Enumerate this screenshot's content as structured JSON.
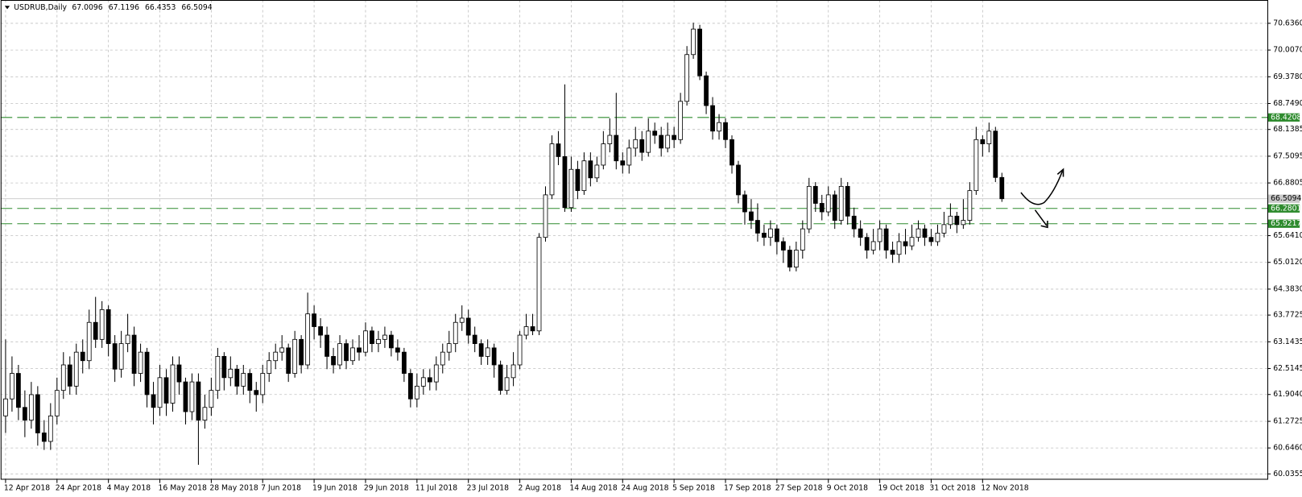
{
  "chart_data": {
    "type": "candlestick",
    "title": "USDRUB,Daily",
    "title_values": [
      67.0096,
      67.1196,
      66.4353,
      66.5094
    ],
    "open": [
      61.4,
      61.8,
      62.4,
      61.6,
      61.3,
      61.9,
      61.0,
      60.8,
      61.4,
      62.0,
      62.6,
      62.1,
      62.9,
      62.7,
      63.6,
      63.2,
      63.9,
      63.1,
      62.5,
      63.1,
      63.3,
      62.4,
      62.9,
      61.9,
      61.6,
      62.3,
      61.7,
      62.6,
      62.2,
      61.5,
      62.2,
      61.3,
      61.6,
      62.0,
      62.8,
      62.3,
      62.5,
      62.1,
      62.4,
      62.0,
      61.9,
      62.4,
      62.7,
      62.9,
      63.0,
      62.4,
      63.2,
      62.6,
      63.8,
      63.5,
      63.3,
      62.8,
      62.6,
      63.1,
      62.7,
      63.0,
      62.9,
      63.4,
      63.1,
      63.2,
      63.3,
      63.0,
      62.9,
      62.4,
      61.8,
      62.1,
      62.3,
      62.2,
      62.6,
      62.9,
      63.1,
      63.6,
      63.7,
      63.3,
      63.1,
      62.8,
      63.0,
      62.6,
      62.0,
      62.3,
      62.6,
      63.3,
      63.5,
      63.4,
      65.6,
      66.6,
      67.8,
      67.5,
      66.3,
      67.2,
      66.7,
      67.4,
      67.0,
      67.3,
      67.8,
      68.0,
      67.4,
      67.3,
      67.7,
      67.9,
      67.6,
      68.1,
      68.0,
      67.7,
      68.0,
      67.9,
      68.8,
      69.9,
      70.5,
      69.4,
      68.7,
      68.1,
      68.3,
      67.9,
      67.3,
      66.6,
      66.2,
      66.0,
      65.7,
      65.6,
      65.8,
      65.5,
      65.3,
      64.9,
      65.3,
      65.8,
      66.8,
      66.4,
      66.2,
      66.6,
      66.0,
      66.8,
      66.1,
      65.8,
      65.6,
      65.3,
      65.5,
      65.8,
      65.3,
      65.2,
      65.5,
      65.4,
      65.6,
      65.8,
      65.6,
      65.5,
      65.7,
      65.9,
      66.1,
      65.9,
      66.0,
      66.7,
      67.9,
      67.8,
      68.1,
      67.0096
    ],
    "high": [
      63.2,
      62.8,
      62.6,
      62.0,
      62.2,
      62.1,
      61.3,
      61.7,
      62.3,
      62.9,
      62.8,
      63.1,
      63.2,
      63.9,
      64.2,
      64.1,
      64.0,
      63.3,
      63.4,
      63.8,
      63.5,
      63.1,
      63.0,
      62.2,
      62.6,
      62.5,
      62.8,
      62.8,
      62.3,
      62.4,
      62.4,
      61.9,
      62.3,
      63.0,
      62.9,
      62.8,
      62.6,
      62.6,
      62.5,
      62.2,
      62.6,
      62.9,
      63.1,
      63.3,
      63.1,
      63.4,
      63.3,
      64.3,
      64.0,
      63.7,
      63.5,
      63.0,
      63.3,
      63.2,
      63.2,
      63.3,
      63.6,
      63.5,
      63.4,
      63.5,
      63.4,
      63.2,
      63.0,
      62.5,
      62.4,
      62.5,
      62.5,
      62.8,
      63.1,
      63.4,
      63.8,
      64.0,
      63.9,
      63.5,
      63.2,
      63.2,
      63.1,
      62.7,
      62.6,
      62.9,
      63.4,
      63.8,
      63.8,
      65.7,
      66.8,
      68.0,
      68.1,
      69.2,
      67.5,
      67.4,
      67.6,
      67.6,
      67.5,
      68.1,
      68.4,
      69.0,
      67.6,
      67.9,
      68.2,
      68.1,
      68.4,
      68.3,
      68.2,
      68.3,
      68.2,
      69.0,
      70.1,
      70.65,
      70.6,
      69.5,
      68.9,
      68.5,
      68.4,
      68.0,
      67.4,
      66.7,
      66.5,
      66.4,
      65.9,
      66.0,
      65.9,
      65.6,
      65.4,
      65.5,
      66.0,
      67.0,
      66.9,
      66.6,
      66.8,
      66.7,
      67.0,
      66.9,
      66.3,
      66.0,
      65.7,
      65.8,
      66.0,
      65.9,
      65.5,
      65.7,
      65.8,
      65.9,
      66.0,
      65.9,
      65.8,
      65.9,
      66.2,
      66.4,
      66.2,
      66.5,
      66.9,
      68.2,
      68.0,
      68.3,
      68.2,
      67.1196
    ],
    "low": [
      61.0,
      61.5,
      61.3,
      60.9,
      61.1,
      60.7,
      60.6,
      60.6,
      61.2,
      61.8,
      61.9,
      61.9,
      62.4,
      62.5,
      63.0,
      63.0,
      62.8,
      62.2,
      62.3,
      62.9,
      62.1,
      62.2,
      61.6,
      61.2,
      61.4,
      61.4,
      61.5,
      61.9,
      61.2,
      61.3,
      60.25,
      61.1,
      61.4,
      61.8,
      62.0,
      62.1,
      61.9,
      61.9,
      61.7,
      61.5,
      61.7,
      62.2,
      62.5,
      62.7,
      62.2,
      62.3,
      62.4,
      62.5,
      63.2,
      63.0,
      62.5,
      62.4,
      62.5,
      62.5,
      62.6,
      62.7,
      62.8,
      62.9,
      62.9,
      63.0,
      62.8,
      62.7,
      62.2,
      61.6,
      61.6,
      61.9,
      62.0,
      62.0,
      62.4,
      62.7,
      62.9,
      63.4,
      63.1,
      62.9,
      62.6,
      62.6,
      62.3,
      61.9,
      61.9,
      62.1,
      62.5,
      63.2,
      63.3,
      63.3,
      65.5,
      66.5,
      67.3,
      66.2,
      66.2,
      66.5,
      66.6,
      66.8,
      66.9,
      67.2,
      67.6,
      67.2,
      67.1,
      67.1,
      67.5,
      67.4,
      67.5,
      67.8,
      67.5,
      67.6,
      67.7,
      67.8,
      68.7,
      69.8,
      69.3,
      68.5,
      67.9,
      67.9,
      67.7,
      67.1,
      66.4,
      65.9,
      65.8,
      65.5,
      65.4,
      65.4,
      65.2,
      65.0,
      64.8,
      64.8,
      65.1,
      65.7,
      66.2,
      66.0,
      66.1,
      65.8,
      65.9,
      65.9,
      65.6,
      65.4,
      65.1,
      65.2,
      65.3,
      65.1,
      65.0,
      65.0,
      65.2,
      65.3,
      65.5,
      65.4,
      65.4,
      65.4,
      65.6,
      65.8,
      65.7,
      65.8,
      65.9,
      66.6,
      67.5,
      67.6,
      66.9,
      66.4353
    ],
    "close": [
      61.8,
      62.4,
      61.6,
      61.3,
      61.9,
      61.0,
      60.8,
      61.4,
      62.0,
      62.6,
      62.1,
      62.9,
      62.7,
      63.6,
      63.2,
      63.9,
      63.1,
      62.5,
      63.1,
      63.3,
      62.4,
      62.9,
      61.9,
      61.6,
      62.3,
      61.7,
      62.6,
      62.2,
      61.5,
      62.2,
      61.3,
      61.6,
      62.0,
      62.8,
      62.3,
      62.5,
      62.1,
      62.4,
      62.0,
      61.9,
      62.4,
      62.7,
      62.9,
      63.0,
      62.4,
      63.2,
      62.6,
      63.8,
      63.5,
      63.3,
      62.8,
      62.6,
      63.1,
      62.7,
      63.0,
      62.9,
      63.4,
      63.1,
      63.2,
      63.3,
      63.0,
      62.9,
      62.4,
      61.8,
      62.1,
      62.3,
      62.2,
      62.6,
      62.9,
      63.1,
      63.6,
      63.7,
      63.3,
      63.1,
      62.8,
      63.0,
      62.6,
      62.0,
      62.3,
      62.6,
      63.3,
      63.5,
      63.4,
      65.6,
      66.6,
      67.8,
      67.5,
      66.3,
      67.2,
      66.7,
      67.4,
      67.0,
      67.3,
      67.8,
      68.0,
      67.4,
      67.3,
      67.7,
      67.9,
      67.6,
      68.1,
      68.0,
      67.7,
      68.0,
      67.9,
      68.8,
      69.9,
      70.5,
      69.4,
      68.7,
      68.1,
      68.3,
      67.9,
      67.3,
      66.6,
      66.2,
      66.0,
      65.7,
      65.6,
      65.8,
      65.5,
      65.3,
      64.9,
      65.3,
      65.8,
      66.8,
      66.4,
      66.2,
      66.6,
      66.0,
      66.8,
      66.1,
      65.8,
      65.6,
      65.3,
      65.5,
      65.8,
      65.3,
      65.2,
      65.5,
      65.4,
      65.6,
      65.8,
      65.6,
      65.5,
      65.7,
      65.9,
      66.1,
      65.9,
      66.0,
      66.7,
      67.9,
      67.8,
      68.1,
      67.0096,
      66.5094
    ],
    "xlim": [
      -0.77,
      196.3
    ],
    "xticks": [
      {
        "value": 0,
        "label": "12 Apr 2018"
      },
      {
        "value": 8,
        "label": "24 Apr 2018"
      },
      {
        "value": 16,
        "label": "4 May 2018"
      },
      {
        "value": 24,
        "label": "16 May 2018"
      },
      {
        "value": 32,
        "label": "28 May 2018"
      },
      {
        "value": 40,
        "label": "7 Jun 2018"
      },
      {
        "value": 48,
        "label": "19 Jun 2018"
      },
      {
        "value": 56,
        "label": "29 Jun 2018"
      },
      {
        "value": 64,
        "label": "11 Jul 2018"
      },
      {
        "value": 72,
        "label": "23 Jul 2018"
      },
      {
        "value": 80,
        "label": "2 Aug 2018"
      },
      {
        "value": 88,
        "label": "14 Aug 2018"
      },
      {
        "value": 96,
        "label": "24 Aug 2018"
      },
      {
        "value": 104,
        "label": "5 Sep 2018"
      },
      {
        "value": 112,
        "label": "17 Sep 2018"
      },
      {
        "value": 120,
        "label": "27 Sep 2018"
      },
      {
        "value": 128,
        "label": "9 Oct 2018"
      },
      {
        "value": 136,
        "label": "19 Oct 2018"
      },
      {
        "value": 144,
        "label": "31 Oct 2018"
      },
      {
        "value": 152,
        "label": "12 Nov 2018"
      }
    ],
    "ylim": [
      59.9,
      71.184
    ],
    "yticks": [
      {
        "value": 70.636,
        "label": "70.6360"
      },
      {
        "value": 70.007,
        "label": "70.0070"
      },
      {
        "value": 69.378,
        "label": "69.3780"
      },
      {
        "value": 68.749,
        "label": "68.7490"
      },
      68.1385,
      67.5095,
      66.8805,
      {
        "value": 65.641,
        "label": "65.6410"
      },
      {
        "value": 65.012,
        "label": "65.0120"
      },
      {
        "value": 64.383,
        "label": "64.3830"
      },
      63.7725,
      63.1435,
      62.5145,
      {
        "value": 61.904,
        "label": "61.9040"
      },
      61.2725,
      {
        "value": 60.646,
        "label": "60.6460"
      },
      60.0355
    ],
    "levels": [
      {
        "value": 68.4208,
        "color": "#2e8b2e"
      },
      {
        "value": 66.2801,
        "color": "#2e8b2e"
      },
      {
        "value": 65.9217,
        "color": "#2e8b2e"
      }
    ],
    "grid": true,
    "up_color": "#ffffff",
    "down_color": "#000000",
    "last_price_color": "#c8c8c8"
  }
}
